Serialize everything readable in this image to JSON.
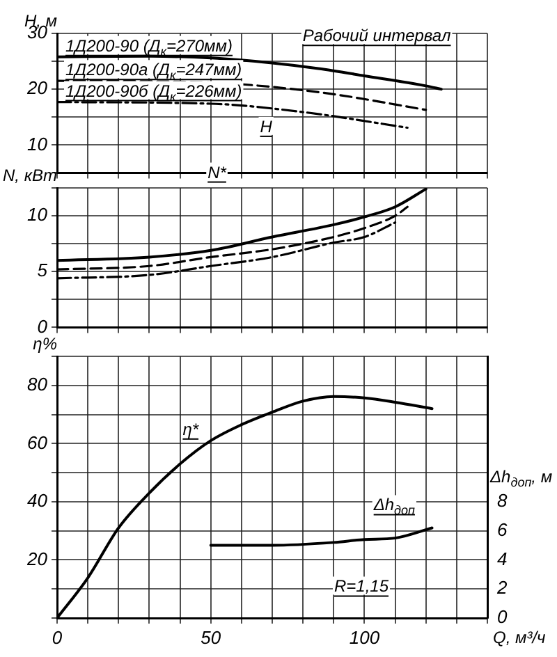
{
  "chart_data": [
    {
      "type": "line",
      "ylabel": "H, м",
      "xlim": [
        0,
        140
      ],
      "xticks": [
        0,
        {
          "value": 10,
          "label": null
        },
        {
          "value": 20,
          "label": null
        },
        {
          "value": 30,
          "label": null
        },
        {
          "value": 40,
          "label": null
        },
        50,
        {
          "value": 60,
          "label": null
        },
        {
          "value": 70,
          "label": null
        },
        {
          "value": 80,
          "label": null
        },
        {
          "value": 90,
          "label": null
        },
        100,
        {
          "value": 110,
          "label": null
        },
        {
          "value": 120,
          "label": null
        },
        {
          "value": 130,
          "label": null
        },
        {
          "value": 140,
          "label": null
        }
      ],
      "ylim": [
        5,
        30
      ],
      "yticks": [
        {
          "value": 5,
          "label": null
        },
        10,
        {
          "value": 15,
          "label": null
        },
        20,
        {
          "value": 25,
          "label": null
        },
        30
      ],
      "tick_labels": "y",
      "grid": true,
      "annotations": [
        "Рабочий интервал",
        "H"
      ],
      "series": [
        {
          "name": "1Д200-90 (Д$_{к}$=270мм)",
          "color": "#000000",
          "line_style": "solid",
          "x": [
            0,
            30,
            50,
            70,
            85,
            100,
            120,
            125
          ],
          "values": [
            25.8,
            25.9,
            25.6,
            24.7,
            23.7,
            22.4,
            20.6,
            20.0
          ]
        },
        {
          "name": "1Д200-90а (Д$_{к}$=247мм)",
          "color": "#000000",
          "line_style": "dashed",
          "x": [
            0,
            50,
            70,
            90,
            120
          ],
          "values": [
            21.5,
            21.2,
            20.4,
            19.1,
            16.3
          ]
        },
        {
          "name": "1Д200-90б (Д$_{к}$=226мм)",
          "color": "#000000",
          "line_style": "dashdot",
          "x": [
            0,
            50,
            80,
            114
          ],
          "values": [
            17.7,
            17.4,
            15.9,
            13.1
          ]
        }
      ]
    },
    {
      "type": "line",
      "ylabel": "N, кВт",
      "xlim": [
        0,
        140
      ],
      "xticks": [
        0,
        {
          "value": 10,
          "label": null
        },
        {
          "value": 20,
          "label": null
        },
        {
          "value": 30,
          "label": null
        },
        {
          "value": 40,
          "label": null
        },
        50,
        {
          "value": 60,
          "label": null
        },
        {
          "value": 70,
          "label": null
        },
        {
          "value": 80,
          "label": null
        },
        {
          "value": 90,
          "label": null
        },
        100,
        {
          "value": 110,
          "label": null
        },
        {
          "value": 120,
          "label": null
        },
        {
          "value": 130,
          "label": null
        },
        {
          "value": 140,
          "label": null
        }
      ],
      "ylim": [
        0,
        12.5
      ],
      "yticks": [
        0,
        {
          "value": 2.5,
          "label": null
        },
        5,
        {
          "value": 7.5,
          "label": null
        },
        10,
        {
          "value": 12.5,
          "label": null
        }
      ],
      "tick_labels": "y",
      "grid": true,
      "annotations": [
        "N*"
      ],
      "series": [
        {
          "color": "#000000",
          "line_style": "solid",
          "x": [
            0,
            30,
            50,
            70,
            90,
            100,
            110,
            120
          ],
          "values": [
            6.0,
            6.3,
            6.9,
            8.1,
            9.2,
            9.9,
            10.8,
            12.4
          ]
        },
        {
          "color": "#000000",
          "line_style": "dashed",
          "x": [
            0,
            30,
            50,
            70,
            90,
            100,
            110,
            114
          ],
          "values": [
            5.2,
            5.5,
            6.3,
            7.0,
            8.1,
            8.9,
            10.0,
            10.8
          ]
        },
        {
          "color": "#000000",
          "line_style": "dashdot",
          "x": [
            0,
            30,
            50,
            70,
            90,
            100,
            110
          ],
          "values": [
            4.4,
            4.7,
            5.5,
            6.3,
            7.6,
            8.1,
            9.4
          ]
        }
      ]
    },
    {
      "type": "line",
      "ylabel": "η%",
      "xlabel": "Q, м³/ч",
      "y2label": "Δh$_{доп}$, м",
      "xlim": [
        0,
        140
      ],
      "xticks": [
        0,
        {
          "value": 10,
          "label": null
        },
        {
          "value": 20,
          "label": null
        },
        {
          "value": 30,
          "label": null
        },
        {
          "value": 40,
          "label": null
        },
        50,
        {
          "value": 60,
          "label": null
        },
        {
          "value": 70,
          "label": null
        },
        {
          "value": 80,
          "label": null
        },
        {
          "value": 90,
          "label": null
        },
        100,
        {
          "value": 110,
          "label": null
        },
        {
          "value": 120,
          "label": null
        },
        {
          "value": 130,
          "label": null
        },
        {
          "value": 140,
          "label": null
        }
      ],
      "ylim": [
        0,
        90
      ],
      "yticks": [
        {
          "value": 0,
          "label": null
        },
        {
          "value": 10,
          "label": null
        },
        20,
        {
          "value": 30,
          "label": null
        },
        40,
        {
          "value": 50,
          "label": null
        },
        60,
        {
          "value": 70,
          "label": null
        },
        80,
        {
          "value": 90,
          "label": null
        }
      ],
      "y2lim": [
        0,
        18
      ],
      "y2ticks": [
        0,
        2,
        4,
        6,
        8
      ],
      "grid": true,
      "annotations": [
        "R=1,15"
      ],
      "series": [
        {
          "name": "η*",
          "color": "#000000",
          "line_style": "solid",
          "x": [
            0,
            10,
            20,
            30,
            40,
            50,
            60,
            70,
            80,
            90,
            100,
            110,
            122
          ],
          "values": [
            0,
            13.8,
            31,
            43,
            53,
            61,
            66.5,
            70.8,
            74.6,
            76.2,
            75.7,
            74.2,
            72
          ]
        },
        {
          "name": "Δh$_{доп}$",
          "color": "#000000",
          "line_style": "solid",
          "axis": "y2",
          "x": [
            50,
            70,
            90,
            100,
            110,
            122
          ],
          "values": [
            5.0,
            5.0,
            5.2,
            5.4,
            5.5,
            6.2
          ]
        }
      ]
    }
  ]
}
